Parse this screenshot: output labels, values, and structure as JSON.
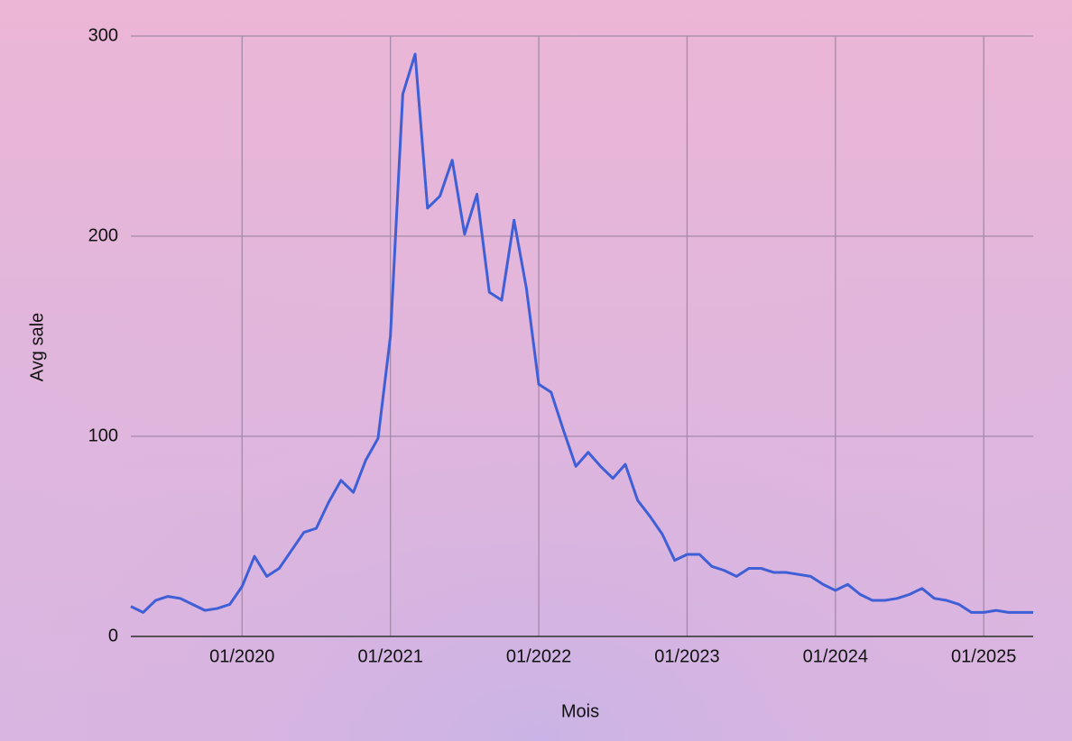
{
  "chart_data": {
    "type": "line",
    "x_label": "Mois",
    "y_label": "Avg sale",
    "x": [
      "04/2019",
      "05/2019",
      "06/2019",
      "07/2019",
      "08/2019",
      "09/2019",
      "10/2019",
      "11/2019",
      "12/2019",
      "01/2020",
      "02/2020",
      "03/2020",
      "04/2020",
      "05/2020",
      "06/2020",
      "07/2020",
      "08/2020",
      "09/2020",
      "10/2020",
      "11/2020",
      "12/2020",
      "01/2021",
      "02/2021",
      "03/2021",
      "04/2021",
      "05/2021",
      "06/2021",
      "07/2021",
      "08/2021",
      "09/2021",
      "10/2021",
      "11/2021",
      "12/2021",
      "01/2022",
      "02/2022",
      "03/2022",
      "04/2022",
      "05/2022",
      "06/2022",
      "07/2022",
      "08/2022",
      "09/2022",
      "10/2022",
      "11/2022",
      "12/2022",
      "01/2023",
      "02/2023",
      "03/2023",
      "04/2023",
      "05/2023",
      "06/2023",
      "07/2023",
      "08/2023",
      "09/2023",
      "10/2023",
      "11/2023",
      "12/2023",
      "01/2024",
      "02/2024",
      "03/2024",
      "04/2024",
      "05/2024",
      "06/2024",
      "07/2024",
      "08/2024",
      "09/2024",
      "10/2024",
      "11/2024",
      "12/2024",
      "01/2025",
      "02/2025",
      "03/2025",
      "04/2025",
      "05/2025"
    ],
    "series": [
      {
        "name": "Avg sale",
        "color": "#3f5fd6",
        "values": [
          15,
          12,
          18,
          20,
          19,
          16,
          13,
          14,
          16,
          25,
          40,
          30,
          34,
          43,
          52,
          54,
          67,
          78,
          72,
          88,
          99,
          150,
          271,
          291,
          214,
          220,
          238,
          201,
          221,
          172,
          168,
          208,
          174,
          126,
          122,
          103,
          85,
          92,
          85,
          79,
          86,
          68,
          60,
          51,
          38,
          41,
          41,
          35,
          33,
          30,
          34,
          34,
          32,
          32,
          31,
          30,
          26,
          23,
          26,
          21,
          18,
          18,
          19,
          21,
          24,
          19,
          18,
          16,
          12,
          12,
          13,
          12,
          12,
          12
        ]
      }
    ],
    "xlim": [
      "04/2019",
      "05/2025"
    ],
    "xticks": [
      "01/2020",
      "01/2021",
      "01/2022",
      "01/2023",
      "01/2024",
      "01/2025"
    ],
    "ylim": [
      0,
      300
    ],
    "yticks": [
      0,
      100,
      200,
      300
    ],
    "grid": true
  }
}
